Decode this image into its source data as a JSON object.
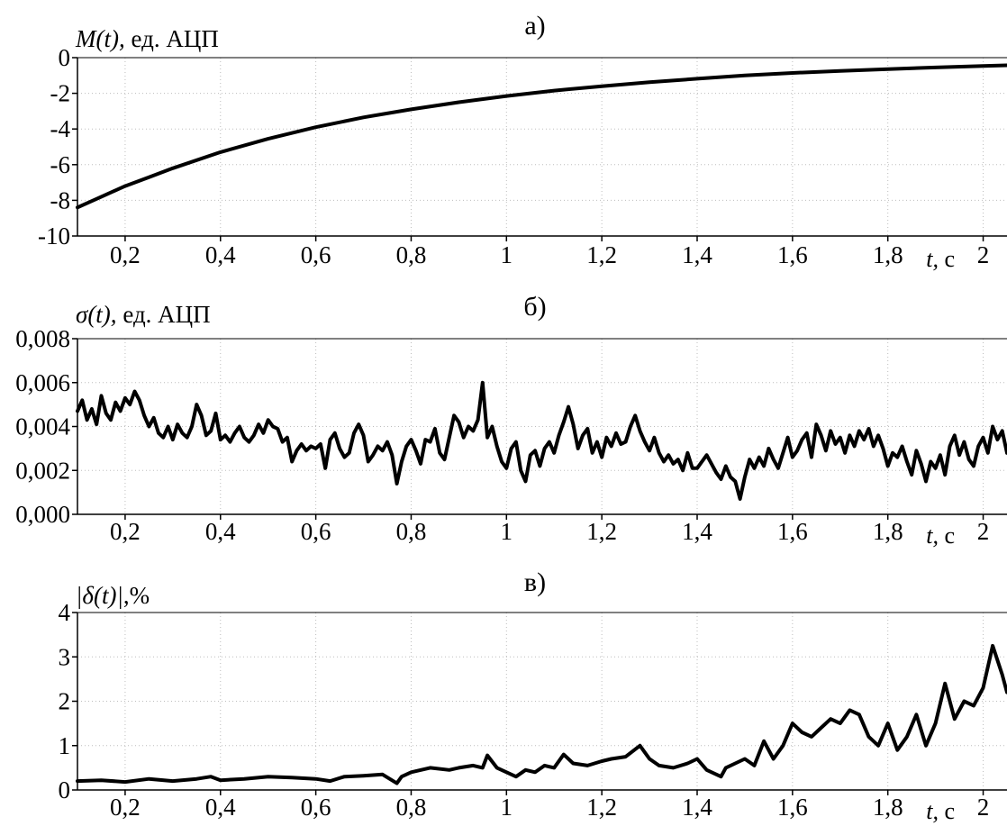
{
  "panels": [
    {
      "letter": "а)",
      "y_label_sym": "M(t),",
      "y_label_unit": " ед. АЦП",
      "x_label_sym": "t,",
      "x_label_unit": " с",
      "x_ticks": [
        "0,2",
        "0,4",
        "0,6",
        "0,8",
        "1",
        "1,2",
        "1,4",
        "1,6",
        "1,8",
        "2"
      ],
      "y_ticks": [
        "0",
        "-2",
        "-4",
        "-6",
        "-8",
        "-10"
      ],
      "chart_data": {
        "type": "line",
        "xlim": [
          0.1,
          2.05
        ],
        "ylim": [
          -10,
          0
        ],
        "grid": true,
        "series": [
          {
            "x": [
              0.1,
              0.15,
              0.2,
              0.25,
              0.3,
              0.4,
              0.5,
              0.6,
              0.7,
              0.8,
              0.9,
              1.0,
              1.1,
              1.2,
              1.3,
              1.4,
              1.5,
              1.6,
              1.7,
              1.8,
              1.9,
              2.0,
              2.05
            ],
            "values": [
              -8.4,
              -7.8,
              -7.2,
              -6.7,
              -6.2,
              -5.3,
              -4.55,
              -3.9,
              -3.35,
              -2.9,
              -2.5,
              -2.15,
              -1.85,
              -1.6,
              -1.38,
              -1.18,
              -1.0,
              -0.86,
              -0.74,
              -0.64,
              -0.55,
              -0.47,
              -0.43
            ]
          }
        ]
      }
    },
    {
      "letter": "б)",
      "y_label_sym": "σ(t),",
      "y_label_unit": " ед. АЦП",
      "x_label_sym": "t,",
      "x_label_unit": " с",
      "x_ticks": [
        "0,2",
        "0,4",
        "0,6",
        "0,8",
        "1",
        "1,2",
        "1,4",
        "1,6",
        "1,8",
        "2"
      ],
      "y_ticks": [
        "0,008",
        "0,006",
        "0,004",
        "0,002",
        "0,000"
      ],
      "chart_data": {
        "type": "line",
        "xlim": [
          0.1,
          2.05
        ],
        "ylim": [
          0,
          0.008
        ],
        "grid": true,
        "series": [
          {
            "x": [
              0.1,
              0.11,
              0.12,
              0.13,
              0.14,
              0.15,
              0.16,
              0.17,
              0.18,
              0.19,
              0.2,
              0.21,
              0.22,
              0.23,
              0.24,
              0.25,
              0.26,
              0.27,
              0.28,
              0.29,
              0.3,
              0.31,
              0.32,
              0.33,
              0.34,
              0.35,
              0.36,
              0.37,
              0.38,
              0.39,
              0.4,
              0.41,
              0.42,
              0.43,
              0.44,
              0.45,
              0.46,
              0.47,
              0.48,
              0.49,
              0.5,
              0.51,
              0.52,
              0.53,
              0.54,
              0.55,
              0.56,
              0.57,
              0.58,
              0.59,
              0.6,
              0.61,
              0.62,
              0.63,
              0.64,
              0.65,
              0.66,
              0.67,
              0.68,
              0.69,
              0.7,
              0.71,
              0.72,
              0.73,
              0.74,
              0.75,
              0.76,
              0.77,
              0.78,
              0.79,
              0.8,
              0.81,
              0.82,
              0.83,
              0.84,
              0.85,
              0.86,
              0.87,
              0.88,
              0.89,
              0.9,
              0.91,
              0.92,
              0.93,
              0.94,
              0.95,
              0.96,
              0.97,
              0.98,
              0.99,
              1.0,
              1.01,
              1.02,
              1.03,
              1.04,
              1.05,
              1.06,
              1.07,
              1.08,
              1.09,
              1.1,
              1.11,
              1.12,
              1.13,
              1.14,
              1.15,
              1.16,
              1.17,
              1.18,
              1.19,
              1.2,
              1.21,
              1.22,
              1.23,
              1.24,
              1.25,
              1.26,
              1.27,
              1.28,
              1.29,
              1.3,
              1.31,
              1.32,
              1.33,
              1.34,
              1.35,
              1.36,
              1.37,
              1.38,
              1.39,
              1.4,
              1.41,
              1.42,
              1.43,
              1.44,
              1.45,
              1.46,
              1.47,
              1.48,
              1.49,
              1.5,
              1.51,
              1.52,
              1.53,
              1.54,
              1.55,
              1.56,
              1.57,
              1.58,
              1.59,
              1.6,
              1.61,
              1.62,
              1.63,
              1.64,
              1.65,
              1.66,
              1.67,
              1.68,
              1.69,
              1.7,
              1.71,
              1.72,
              1.73,
              1.74,
              1.75,
              1.76,
              1.77,
              1.78,
              1.79,
              1.8,
              1.81,
              1.82,
              1.83,
              1.84,
              1.85,
              1.86,
              1.87,
              1.88,
              1.89,
              1.9,
              1.91,
              1.92,
              1.93,
              1.94,
              1.95,
              1.96,
              1.97,
              1.98,
              1.99,
              2.0,
              2.01,
              2.02,
              2.03,
              2.04,
              2.05
            ],
            "values": [
              0.0047,
              0.0052,
              0.0043,
              0.0048,
              0.0041,
              0.0054,
              0.0046,
              0.0043,
              0.0051,
              0.0047,
              0.0053,
              0.005,
              0.0056,
              0.0052,
              0.0045,
              0.004,
              0.0044,
              0.0037,
              0.0035,
              0.004,
              0.0034,
              0.0041,
              0.0037,
              0.0035,
              0.004,
              0.005,
              0.0045,
              0.0036,
              0.0038,
              0.0046,
              0.0034,
              0.0036,
              0.0033,
              0.0037,
              0.004,
              0.0035,
              0.0033,
              0.0036,
              0.0041,
              0.0037,
              0.0043,
              0.004,
              0.0039,
              0.0033,
              0.0035,
              0.0024,
              0.0029,
              0.0032,
              0.0029,
              0.0031,
              0.003,
              0.0032,
              0.0021,
              0.0034,
              0.0037,
              0.003,
              0.0026,
              0.0028,
              0.0037,
              0.0041,
              0.0036,
              0.0024,
              0.0027,
              0.0031,
              0.0029,
              0.0033,
              0.0027,
              0.0014,
              0.0024,
              0.0031,
              0.0034,
              0.0029,
              0.0023,
              0.0034,
              0.0033,
              0.0039,
              0.0028,
              0.0025,
              0.0035,
              0.0045,
              0.0042,
              0.0035,
              0.004,
              0.0038,
              0.0043,
              0.006,
              0.0035,
              0.004,
              0.0031,
              0.0024,
              0.0021,
              0.003,
              0.0033,
              0.002,
              0.0015,
              0.0027,
              0.0029,
              0.0022,
              0.003,
              0.0033,
              0.0028,
              0.0036,
              0.0042,
              0.0049,
              0.0041,
              0.003,
              0.0036,
              0.0039,
              0.0028,
              0.0033,
              0.0026,
              0.0035,
              0.0031,
              0.0037,
              0.0032,
              0.0033,
              0.004,
              0.0045,
              0.0038,
              0.0033,
              0.0029,
              0.0035,
              0.0028,
              0.0024,
              0.0027,
              0.0023,
              0.0025,
              0.002,
              0.0028,
              0.0021,
              0.0021,
              0.0024,
              0.0027,
              0.0023,
              0.0019,
              0.0016,
              0.0022,
              0.0017,
              0.0015,
              0.0007,
              0.0017,
              0.0025,
              0.0021,
              0.0026,
              0.0022,
              0.003,
              0.0025,
              0.0021,
              0.0028,
              0.0035,
              0.0026,
              0.0029,
              0.0034,
              0.0037,
              0.0026,
              0.0041,
              0.0036,
              0.0029,
              0.0038,
              0.0032,
              0.0035,
              0.0028,
              0.0036,
              0.0031,
              0.0038,
              0.0034,
              0.0039,
              0.0031,
              0.0036,
              0.003,
              0.0022,
              0.0028,
              0.0026,
              0.0031,
              0.0024,
              0.0018,
              0.0029,
              0.0023,
              0.0015,
              0.0024,
              0.0021,
              0.0027,
              0.0018,
              0.0031,
              0.0036,
              0.0027,
              0.0033,
              0.0025,
              0.0022,
              0.0031,
              0.0035,
              0.0028,
              0.004,
              0.0034,
              0.0038,
              0.0028
            ],
            "smoothing": "raw"
          }
        ]
      }
    },
    {
      "letter": "в)",
      "y_label_sym": "|δ(t)|",
      "y_label_unit": ",%",
      "x_label_sym": "t,",
      "x_label_unit": " с",
      "x_ticks": [
        "0,2",
        "0,4",
        "0,6",
        "0,8",
        "1",
        "1,2",
        "1,4",
        "1,6",
        "1,8",
        "2"
      ],
      "y_ticks": [
        "4",
        "3",
        "2",
        "1",
        "0"
      ],
      "chart_data": {
        "type": "line",
        "xlim": [
          0.1,
          2.05
        ],
        "ylim": [
          0,
          4
        ],
        "grid": true,
        "series": [
          {
            "x": [
              0.1,
              0.15,
              0.2,
              0.25,
              0.3,
              0.35,
              0.38,
              0.4,
              0.45,
              0.5,
              0.55,
              0.6,
              0.63,
              0.66,
              0.7,
              0.74,
              0.77,
              0.78,
              0.8,
              0.84,
              0.88,
              0.9,
              0.93,
              0.95,
              0.96,
              0.98,
              1.0,
              1.02,
              1.04,
              1.06,
              1.08,
              1.1,
              1.12,
              1.14,
              1.17,
              1.2,
              1.22,
              1.25,
              1.28,
              1.3,
              1.32,
              1.35,
              1.38,
              1.4,
              1.42,
              1.45,
              1.46,
              1.48,
              1.5,
              1.52,
              1.54,
              1.56,
              1.58,
              1.6,
              1.62,
              1.64,
              1.66,
              1.68,
              1.7,
              1.72,
              1.74,
              1.76,
              1.78,
              1.8,
              1.82,
              1.84,
              1.86,
              1.88,
              1.9,
              1.92,
              1.94,
              1.96,
              1.98,
              2.0,
              2.02,
              2.04,
              2.05
            ],
            "values": [
              0.2,
              0.22,
              0.18,
              0.25,
              0.2,
              0.25,
              0.3,
              0.22,
              0.25,
              0.3,
              0.28,
              0.25,
              0.2,
              0.3,
              0.32,
              0.35,
              0.15,
              0.3,
              0.4,
              0.5,
              0.45,
              0.5,
              0.55,
              0.5,
              0.78,
              0.5,
              0.4,
              0.3,
              0.45,
              0.4,
              0.55,
              0.5,
              0.8,
              0.6,
              0.55,
              0.65,
              0.7,
              0.75,
              1.0,
              0.7,
              0.55,
              0.5,
              0.6,
              0.7,
              0.45,
              0.3,
              0.5,
              0.6,
              0.7,
              0.55,
              1.1,
              0.7,
              1.0,
              1.5,
              1.3,
              1.2,
              1.4,
              1.6,
              1.5,
              1.8,
              1.7,
              1.2,
              1.0,
              1.5,
              0.9,
              1.2,
              1.7,
              1.0,
              1.5,
              2.4,
              1.6,
              2.0,
              1.9,
              2.3,
              3.25,
              2.6,
              2.2
            ]
          }
        ]
      }
    }
  ]
}
